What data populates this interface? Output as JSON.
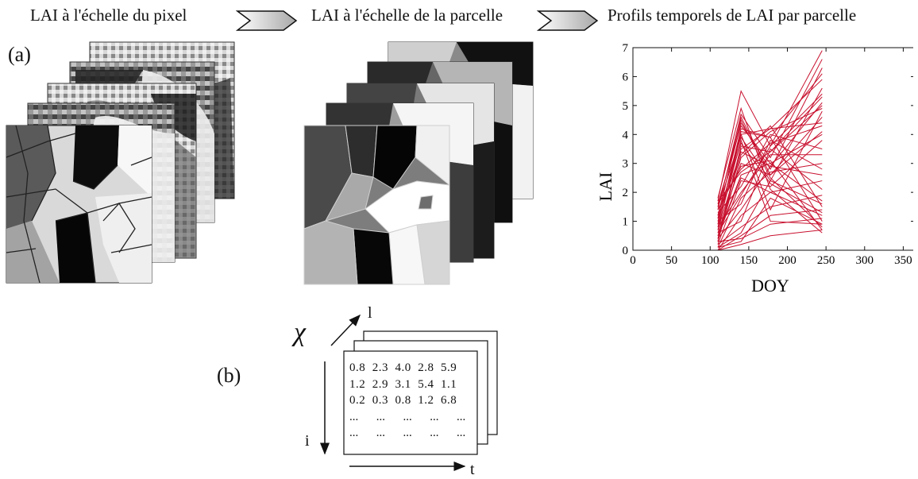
{
  "header": {
    "step1": "LAI à l'échelle du pixel",
    "step2": "LAI à l'échelle de la parcelle",
    "step3": "Profils temporels de LAI par parcelle"
  },
  "panel_a": {
    "label": "(a)"
  },
  "panel_b": {
    "label": "(b)",
    "symbol": "χ",
    "axis_l": "l",
    "axis_i": "i",
    "axis_t": "t",
    "matrix_rows": [
      [
        "0.8",
        "2.3",
        "4.0",
        "2.8",
        "5.9"
      ],
      [
        "1.2",
        "2.9",
        "3.1",
        "5.4",
        "1.1"
      ],
      [
        "0.2",
        "0.3",
        "0.8",
        "1.2",
        "6.8"
      ],
      [
        "...",
        "...",
        "...",
        "...",
        "..."
      ],
      [
        "...",
        "...",
        "...",
        "...",
        "..."
      ]
    ]
  },
  "colors": {
    "series": "#c8102e",
    "axis": "#111111"
  },
  "chart_data": {
    "type": "line",
    "xlabel": "DOY",
    "ylabel": "LAI",
    "xlim": [
      0,
      365
    ],
    "ylim": [
      0,
      7
    ],
    "xticks": [
      0,
      50,
      100,
      150,
      200,
      250,
      300,
      350
    ],
    "yticks": [
      0,
      1,
      2,
      3,
      4,
      5,
      6,
      7
    ],
    "x": [
      110,
      140,
      178,
      245
    ],
    "series": [
      {
        "values": [
          1.7,
          5.5,
          3.6,
          6.9
        ]
      },
      {
        "values": [
          1.4,
          4.7,
          3.2,
          6.6
        ]
      },
      {
        "values": [
          1.2,
          4.4,
          2.8,
          6.3
        ]
      },
      {
        "values": [
          0.9,
          4.2,
          3.9,
          6.1
        ]
      },
      {
        "values": [
          0.7,
          4.0,
          4.2,
          5.9
        ]
      },
      {
        "values": [
          1.5,
          3.9,
          2.4,
          5.6
        ]
      },
      {
        "values": [
          0.4,
          3.6,
          3.4,
          5.3
        ]
      },
      {
        "values": [
          1.1,
          3.4,
          2.9,
          5.1
        ]
      },
      {
        "values": [
          0.3,
          3.2,
          4.1,
          4.9
        ]
      },
      {
        "values": [
          0.6,
          3.0,
          2.6,
          4.6
        ]
      },
      {
        "values": [
          1.6,
          2.8,
          3.7,
          4.3
        ]
      },
      {
        "values": [
          0.5,
          2.6,
          3.0,
          4.0
        ]
      },
      {
        "values": [
          0.2,
          2.4,
          2.2,
          3.8
        ]
      },
      {
        "values": [
          1.3,
          2.2,
          4.0,
          3.5
        ]
      },
      {
        "values": [
          0.8,
          2.0,
          3.3,
          3.3
        ]
      },
      {
        "values": [
          0.1,
          1.8,
          2.7,
          3.0
        ]
      },
      {
        "values": [
          1.0,
          1.6,
          3.8,
          2.8
        ]
      },
      {
        "values": [
          0.4,
          1.4,
          2.9,
          2.6
        ]
      },
      {
        "values": [
          0.0,
          1.2,
          2.0,
          2.4
        ]
      },
      {
        "values": [
          0.6,
          1.0,
          3.5,
          2.1
        ]
      },
      {
        "values": [
          0.2,
          0.8,
          1.5,
          1.9
        ]
      },
      {
        "values": [
          0.1,
          0.6,
          2.4,
          1.6
        ]
      },
      {
        "values": [
          0.0,
          0.5,
          1.2,
          1.4
        ]
      },
      {
        "values": [
          0.3,
          0.4,
          0.9,
          1.1
        ]
      },
      {
        "values": [
          0.1,
          0.3,
          1.8,
          0.9
        ]
      },
      {
        "values": [
          0.0,
          0.2,
          0.5,
          0.7
        ]
      },
      {
        "values": [
          1.8,
          4.9,
          2.1,
          0.6
        ]
      },
      {
        "values": [
          1.5,
          4.5,
          2.5,
          0.8
        ]
      },
      {
        "values": [
          0.9,
          4.1,
          3.9,
          1.0
        ]
      },
      {
        "values": [
          1.2,
          3.7,
          2.3,
          1.3
        ]
      },
      {
        "values": [
          0.7,
          3.3,
          4.3,
          1.5
        ]
      },
      {
        "values": [
          1.4,
          2.9,
          3.1,
          0.7
        ]
      },
      {
        "values": [
          0.5,
          2.5,
          2.0,
          1.2
        ]
      },
      {
        "values": [
          1.6,
          4.3,
          3.0,
          1.7
        ]
      },
      {
        "values": [
          0.8,
          3.8,
          1.0,
          0.9
        ]
      },
      {
        "values": [
          1.1,
          4.6,
          2.6,
          4.1
        ]
      },
      {
        "values": [
          0.3,
          3.5,
          4.2,
          4.4
        ]
      },
      {
        "values": [
          1.7,
          2.7,
          3.4,
          5.0
        ]
      },
      {
        "values": [
          0.6,
          1.9,
          3.6,
          5.4
        ]
      },
      {
        "values": [
          1.0,
          4.0,
          1.4,
          4.8
        ]
      }
    ]
  }
}
